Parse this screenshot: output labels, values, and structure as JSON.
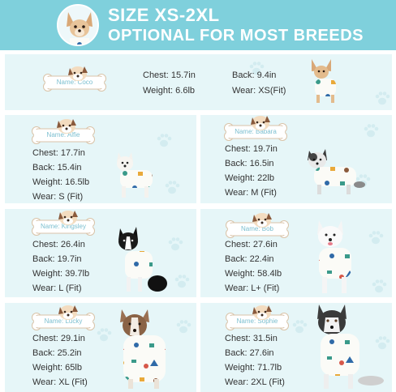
{
  "header": {
    "title": "SIZE XS-2XL",
    "subtitle": "OPTIONAL FOR MOST BREEDS"
  },
  "colors": {
    "header_bg": "#7fd0dc",
    "panel_bg": "#e6f6f8",
    "bone_text": "#7bbfd0",
    "text": "#333333"
  },
  "icons": [
    "dog-avatar-icon",
    "bone-tag-icon",
    "cartoon-dog-icon",
    "paw-print-icon"
  ],
  "dogs": [
    {
      "name": "Name: Coco",
      "chest": "Chest: 15.7in",
      "back": "Back: 9.4in",
      "weight": "Weight: 6.6lb",
      "wear": "Wear: XS(Fit)"
    },
    {
      "name": "Name: Alfie",
      "chest": "Chest: 17.7in",
      "back": "Back: 15.4in",
      "weight": "Weight: 16.5lb",
      "wear": "Wear: S (Fit)"
    },
    {
      "name": "Name: Babara",
      "chest": "Chest: 19.7in",
      "back": "Back: 16.5in",
      "weight": "Weight: 22lb",
      "wear": "Wear: M (Fit)"
    },
    {
      "name": "Name: Kingsley",
      "chest": "Chest: 26.4in",
      "back": "Back: 19.7in",
      "weight": "Weight: 39.7lb",
      "wear": "Wear: L (Fit)"
    },
    {
      "name": "Name: Bob",
      "chest": "Chest: 27.6in",
      "back": "Back: 22.4in",
      "weight": "Weight: 58.4lb",
      "wear": "Wear: L+ (Fit)"
    },
    {
      "name": "Name: Lucky",
      "chest": "Chest: 29.1in",
      "back": "Back: 25.2in",
      "weight": "Weight: 65lb",
      "wear": "Wear: XL (Fit)"
    },
    {
      "name": "Name: Sophie",
      "chest": "Chest: 31.5in",
      "back": "Back: 27.6in",
      "weight": "Weight: 71.7lb",
      "wear": "Wear: 2XL (Fit)"
    }
  ]
}
